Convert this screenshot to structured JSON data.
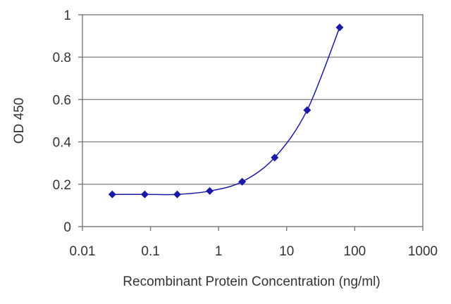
{
  "chart_data": {
    "type": "line",
    "xlabel": "Recombinant Protein Concentration (ng/ml)",
    "ylabel": "OD 450",
    "x_scale": "log",
    "xlim": [
      0.01,
      1000
    ],
    "ylim": [
      0,
      1
    ],
    "x_ticks": [
      0.01,
      0.1,
      1,
      10,
      100,
      1000
    ],
    "x_tick_labels": [
      "0.01",
      "0.1",
      "1",
      "10",
      "100",
      "1000"
    ],
    "y_ticks": [
      0,
      0.2,
      0.4,
      0.6,
      0.8,
      1
    ],
    "y_tick_labels": [
      "0",
      "0.2",
      "0.4",
      "0.6",
      "0.8",
      "1"
    ],
    "grid": "horizontal",
    "legend": "none",
    "series": [
      {
        "color": "#1a1aa6",
        "marker": "diamond",
        "points": [
          {
            "x": 0.0274,
            "y": 0.152
          },
          {
            "x": 0.0823,
            "y": 0.152
          },
          {
            "x": 0.247,
            "y": 0.152
          },
          {
            "x": 0.741,
            "y": 0.168
          },
          {
            "x": 2.22,
            "y": 0.212
          },
          {
            "x": 6.67,
            "y": 0.326
          },
          {
            "x": 20,
            "y": 0.55
          },
          {
            "x": 60,
            "y": 0.94
          }
        ]
      }
    ]
  }
}
